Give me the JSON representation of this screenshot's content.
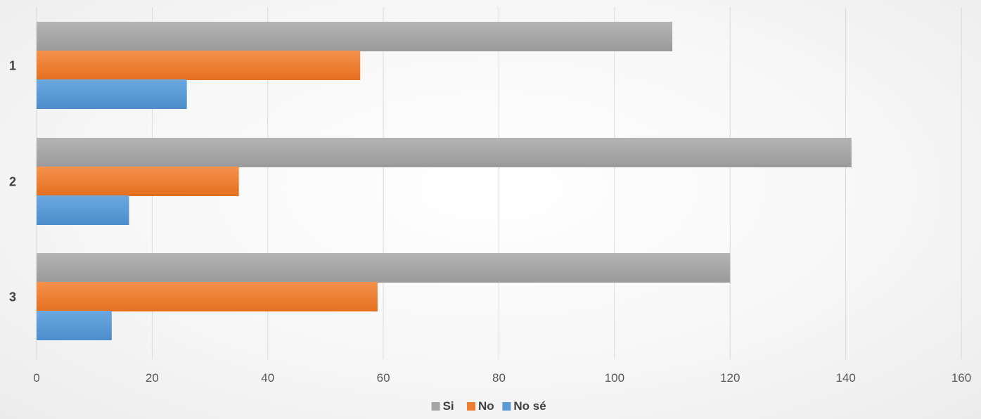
{
  "chart_data": {
    "type": "bar",
    "orientation": "horizontal",
    "categories": [
      "1",
      "2",
      "3"
    ],
    "series": [
      {
        "name": "Si",
        "values": [
          110,
          141,
          120
        ],
        "color": "#a5a5a5"
      },
      {
        "name": "No",
        "values": [
          56,
          35,
          59
        ],
        "color": "#ed7d31"
      },
      {
        "name": "No sé",
        "values": [
          26,
          16,
          13
        ],
        "color": "#5b9bd5"
      }
    ],
    "xlim": [
      0,
      160
    ],
    "x_ticks": [
      0,
      20,
      40,
      60,
      80,
      100,
      120,
      140,
      160
    ],
    "grid": true,
    "legend_position": "bottom"
  }
}
